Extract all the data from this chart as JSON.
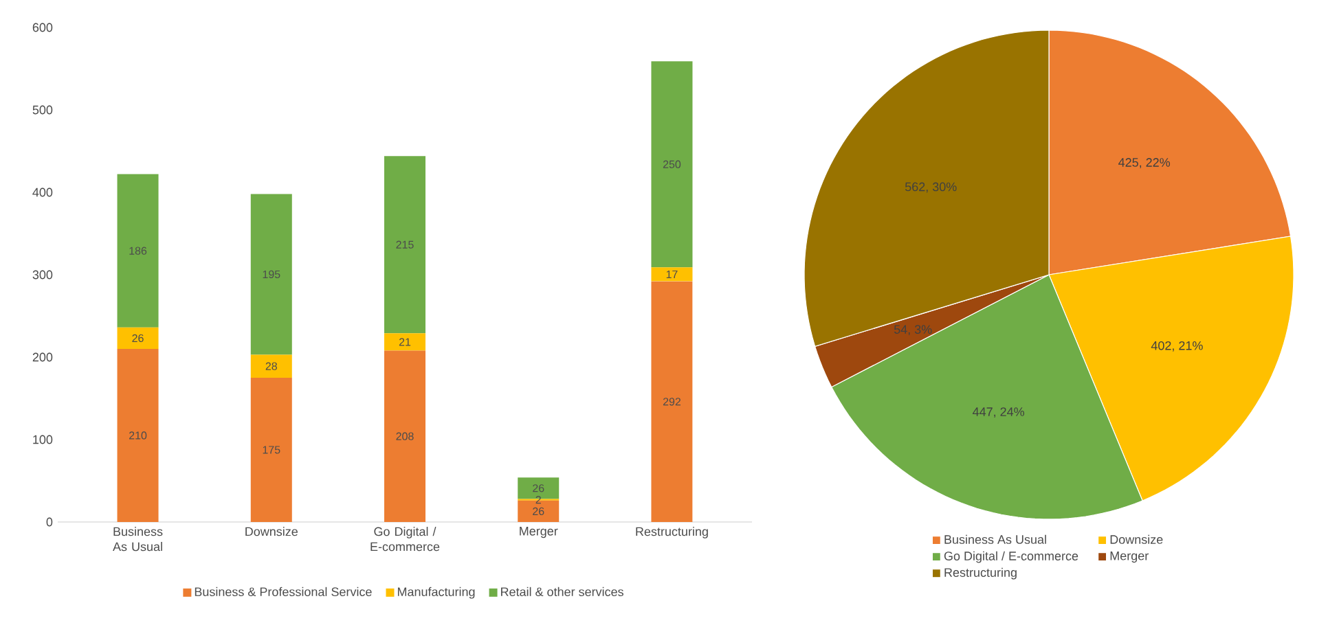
{
  "chart_data": [
    {
      "type": "bar",
      "stacked": true,
      "categories": [
        "Business As Usual",
        "Downsize",
        "Go Digital / E-commerce",
        "Merger",
        "Restructuring"
      ],
      "series": [
        {
          "name": "Business & Professional Service",
          "color": "#ed7d31",
          "values": [
            210,
            175,
            208,
            26,
            292
          ]
        },
        {
          "name": "Manufacturing",
          "color": "#ffc000",
          "values": [
            26,
            28,
            21,
            2,
            17
          ]
        },
        {
          "name": "Retail & other services",
          "color": "#70ad47",
          "values": [
            186,
            195,
            215,
            26,
            250
          ]
        }
      ],
      "ylim": [
        0,
        600
      ],
      "yticks": [
        0,
        100,
        200,
        300,
        400,
        500,
        600
      ],
      "data_labels": true,
      "legend": "bottom",
      "grid": false
    },
    {
      "type": "pie",
      "categories": [
        "Business As Usual",
        "Downsize",
        "Go Digital / E-commerce",
        "Merger",
        "Restructuring"
      ],
      "values": [
        425,
        402,
        447,
        54,
        562
      ],
      "colors": [
        "#ed7d31",
        "#ffc000",
        "#70ad47",
        "#9e480e",
        "#997300"
      ],
      "value_labels": [
        "425, 22%",
        "402, 21%",
        "447, 24%",
        "54, 3%",
        "562, 30%"
      ],
      "legend": "bottom"
    }
  ]
}
